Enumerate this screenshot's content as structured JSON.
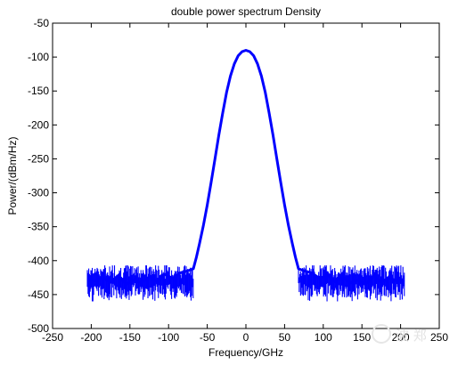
{
  "chart_data": {
    "type": "line",
    "title": "double power spectrum Density",
    "xlabel": "Frequency/GHz",
    "ylabel": "Power/(dBm/Hz)",
    "xlim": [
      -250,
      250
    ],
    "ylim": [
      -500,
      -50
    ],
    "xticks": [
      -250,
      -200,
      -150,
      -100,
      -50,
      0,
      50,
      100,
      150,
      200,
      250
    ],
    "yticks": [
      -50,
      -100,
      -150,
      -200,
      -250,
      -300,
      -350,
      -400,
      -450,
      -500
    ],
    "grid": false,
    "legend": "none",
    "series": [
      {
        "color": "#0000ff",
        "x": [
          -205,
          -195,
          -185,
          -175,
          -165,
          -155,
          -145,
          -135,
          -125,
          -115,
          -105,
          -95,
          -85,
          -75,
          -68,
          -64,
          -60,
          -55,
          -50,
          -45,
          -40,
          -35,
          -30,
          -25,
          -20,
          -15,
          -10,
          -5,
          0,
          5,
          10,
          15,
          20,
          25,
          30,
          35,
          40,
          45,
          50,
          55,
          60,
          64,
          68,
          75,
          85,
          95,
          105,
          115,
          125,
          135,
          145,
          155,
          165,
          175,
          185,
          195,
          205
        ],
        "y": [
          -428,
          -430,
          -425,
          -432,
          -422,
          -435,
          -428,
          -433,
          -424,
          -431,
          -420,
          -426,
          -418,
          -415,
          -412,
          -395,
          -375,
          -348,
          -318,
          -285,
          -250,
          -215,
          -182,
          -152,
          -128,
          -110,
          -98,
          -92,
          -90,
          -92,
          -98,
          -110,
          -128,
          -152,
          -182,
          -215,
          -250,
          -285,
          -318,
          -348,
          -375,
          -395,
          -412,
          -415,
          -418,
          -426,
          -422,
          -431,
          -424,
          -433,
          -428,
          -435,
          -422,
          -432,
          -425,
          -430,
          -428
        ],
        "noise_band": [
          -460,
          -407
        ]
      }
    ]
  },
  "watermark": {
    "text": "波 郑",
    "color": "#e2e2e2"
  }
}
